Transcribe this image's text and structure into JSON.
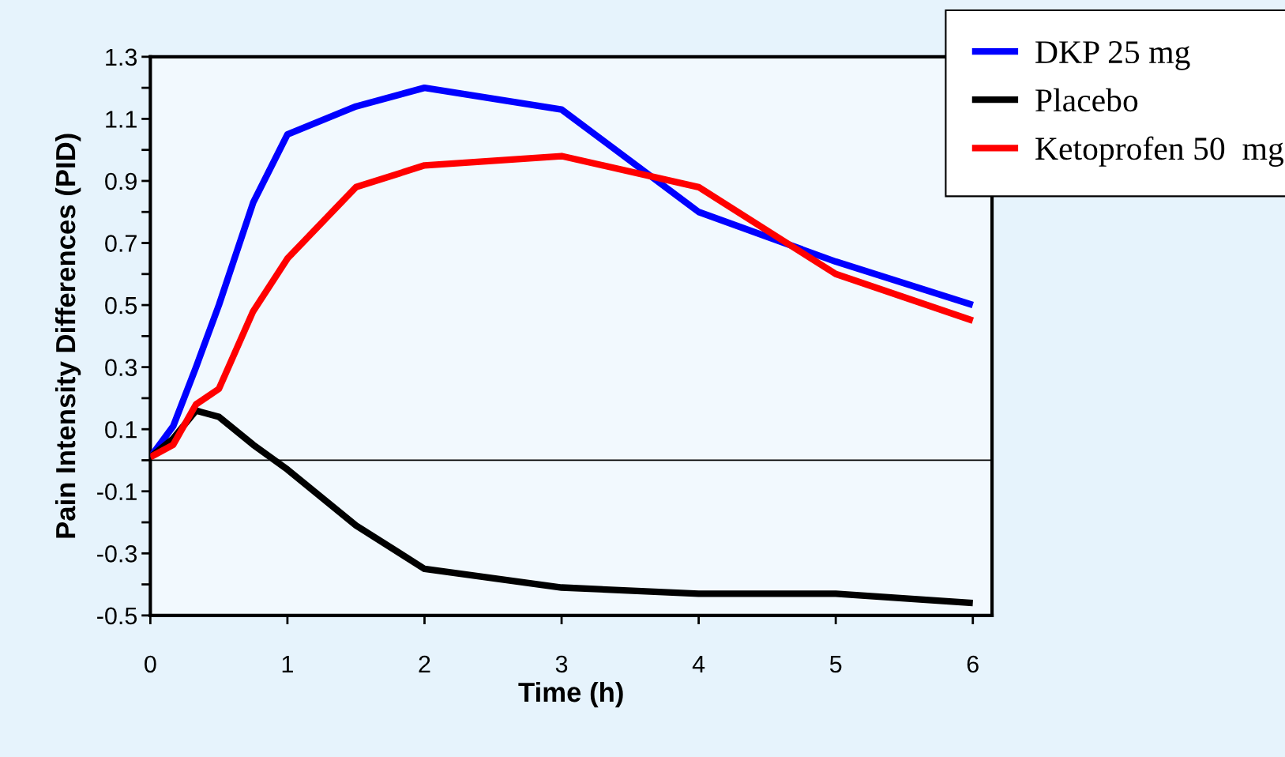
{
  "chart_data": {
    "type": "line",
    "xlabel": "Time (h)",
    "ylabel": "Pain Intensity Differences (PID)",
    "x": [
      0,
      0.167,
      0.333,
      0.5,
      0.75,
      1,
      1.5,
      2,
      3,
      4,
      5,
      6
    ],
    "series": [
      {
        "name": "DKP 25 mg",
        "color": "#0000ff",
        "values": [
          0.01,
          0.11,
          0.3,
          0.5,
          0.83,
          1.05,
          1.14,
          1.2,
          1.13,
          0.8,
          0.64,
          0.5
        ]
      },
      {
        "name": "Placebo",
        "color": "#000000",
        "values": [
          0.01,
          0.07,
          0.16,
          0.14,
          0.05,
          -0.03,
          -0.21,
          -0.35,
          -0.41,
          -0.43,
          -0.43,
          -0.46
        ]
      },
      {
        "name": "Ketoprofen 50  mg",
        "color": "#ff0000",
        "values": [
          0.01,
          0.05,
          0.18,
          0.23,
          0.48,
          0.65,
          0.88,
          0.95,
          0.98,
          0.88,
          0.6,
          0.45
        ]
      }
    ],
    "xlim": [
      0,
      6.14
    ],
    "xticks": [
      0,
      1,
      2,
      3,
      4,
      5,
      6
    ],
    "ylim": [
      -0.5,
      1.3
    ],
    "yticks": [
      {
        "value": -0.5,
        "label": "-0.5"
      },
      {
        "value": -0.4,
        "label": null
      },
      {
        "value": -0.3,
        "label": "-0.3"
      },
      {
        "value": -0.2,
        "label": null
      },
      {
        "value": -0.1,
        "label": "-0.1"
      },
      {
        "value": 0,
        "label": null
      },
      {
        "value": 0.1,
        "label": "0.1"
      },
      {
        "value": 0.2,
        "label": null
      },
      {
        "value": 0.3,
        "label": "0.3"
      },
      {
        "value": 0.4,
        "label": null
      },
      {
        "value": 0.5,
        "label": "0.5"
      },
      {
        "value": 0.6,
        "label": null
      },
      {
        "value": 0.7,
        "label": "0.7"
      },
      {
        "value": 0.8,
        "label": null
      },
      {
        "value": 0.9,
        "label": "0.9"
      },
      {
        "value": 1.0,
        "label": null
      },
      {
        "value": 1.1,
        "label": "1.1"
      },
      {
        "value": 1.2,
        "label": null
      },
      {
        "value": 1.3,
        "label": "1.3"
      }
    ],
    "ref_lines": [
      {
        "axis": "y",
        "value": 0,
        "color": "#000000"
      }
    ],
    "grid": false,
    "legend": "top right",
    "marker": "none",
    "line_style": "solid"
  }
}
